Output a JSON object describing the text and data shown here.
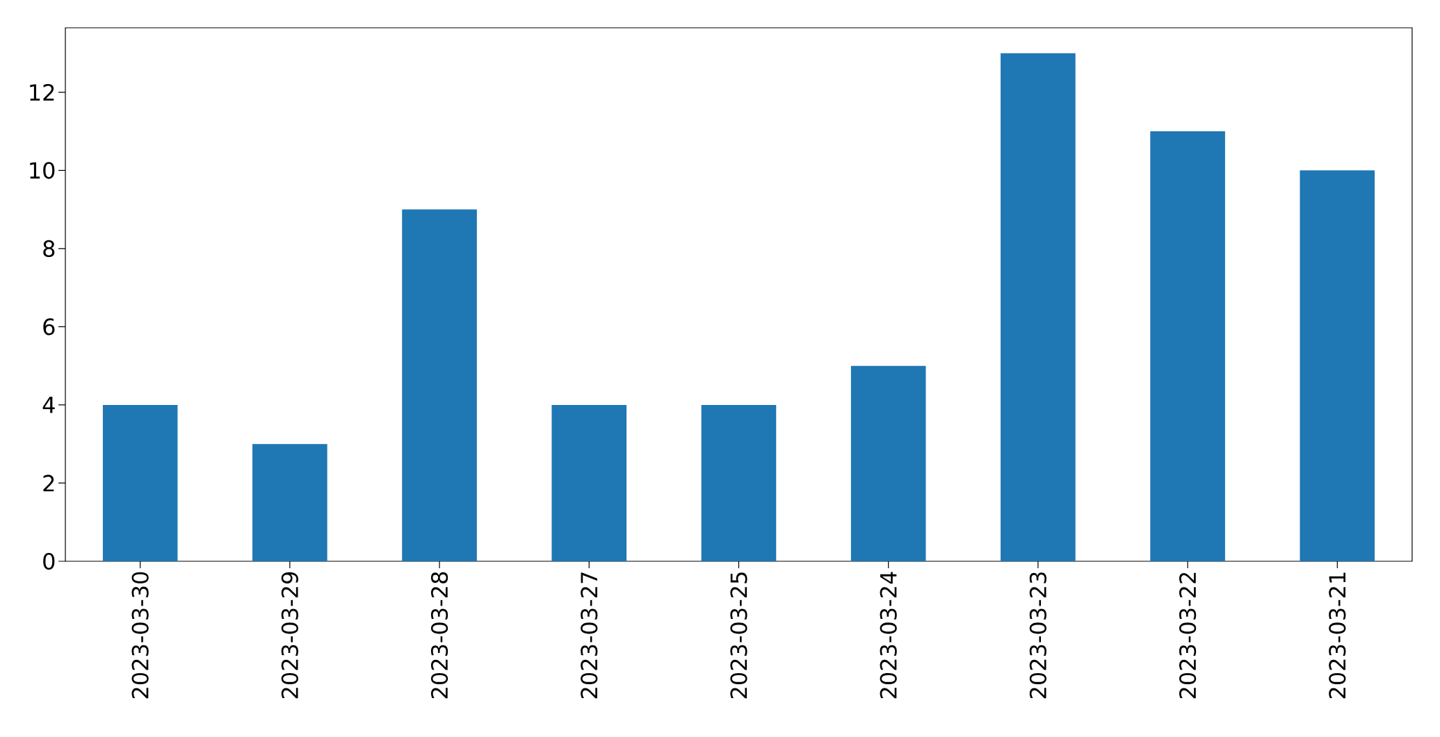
{
  "chart_data": {
    "type": "bar",
    "categories": [
      "2023-03-30",
      "2023-03-29",
      "2023-03-28",
      "2023-03-27",
      "2023-03-25",
      "2023-03-24",
      "2023-03-23",
      "2023-03-22",
      "2023-03-21"
    ],
    "values": [
      4,
      3,
      9,
      4,
      4,
      5,
      13,
      11,
      10
    ],
    "color": "#1f77b4",
    "ylim": [
      0,
      13.65
    ],
    "yticks": [
      0,
      2,
      4,
      6,
      8,
      10,
      12
    ],
    "grid": false
  }
}
